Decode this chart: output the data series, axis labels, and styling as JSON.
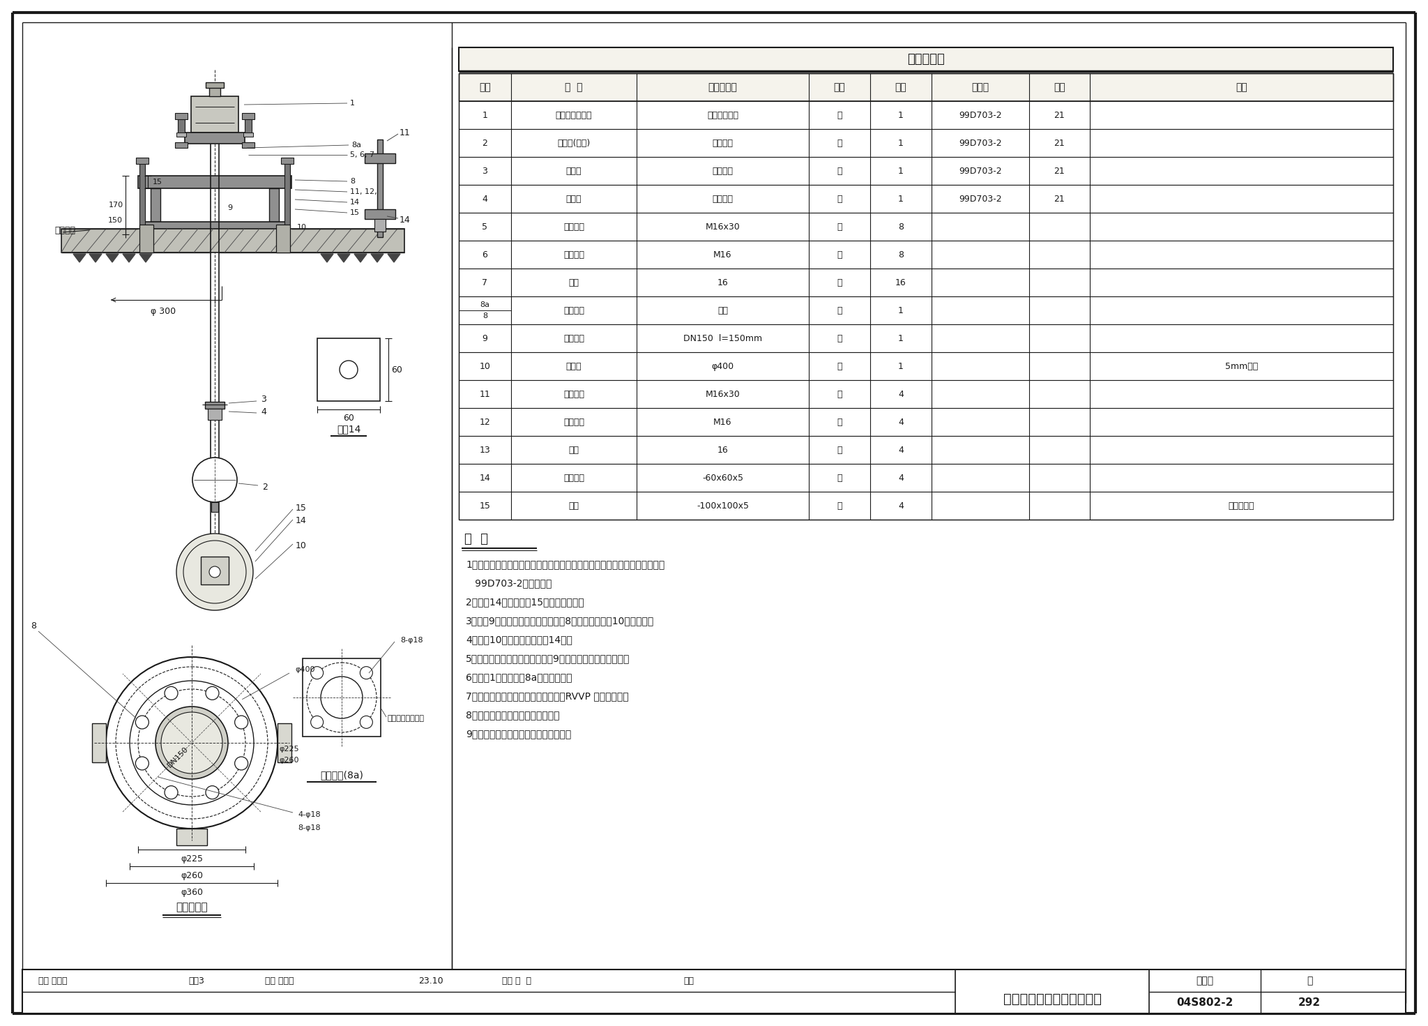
{
  "bg": "#f2f0e8",
  "table_title": "设备材料表",
  "table_headers": [
    "序号",
    "名  称",
    "型号及规格",
    "单位",
    "数量",
    "标准图",
    "页次",
    "附注"
  ],
  "table_rows": [
    [
      "1",
      "浮筒球式液位计",
      "工程设计确定",
      "套",
      "1",
      "99D703-2",
      "21",
      ""
    ],
    [
      "2",
      "传感器(浮球)",
      "仪表配套",
      "套",
      "1",
      "99D703-2",
      "21",
      ""
    ],
    [
      "3",
      "上插圈",
      "仪表配套",
      "套",
      "1",
      "99D703-2",
      "21",
      ""
    ],
    [
      "4",
      "浮球杆",
      "仪表配套",
      "套",
      "1",
      "99D703-2",
      "21",
      ""
    ],
    [
      "5",
      "六角螺栓",
      "M16x30",
      "个",
      "8",
      "",
      "",
      ""
    ],
    [
      "6",
      "六角螺母",
      "M16",
      "个",
      "8",
      "",
      "",
      ""
    ],
    [
      "7",
      "垫圈",
      "16",
      "个",
      "16",
      "",
      "",
      ""
    ],
    [
      "8a/8",
      "安装法兰",
      "见图",
      "对",
      "1",
      "",
      "",
      ""
    ],
    [
      "9",
      "镀锌钢管",
      "DN150  l=150mm",
      "根",
      "1",
      "",
      "",
      ""
    ],
    [
      "10",
      "支承板",
      "φ400",
      "块",
      "1",
      "",
      "",
      "5mm钢板"
    ],
    [
      "11",
      "双头螺栓",
      "M16x30",
      "个",
      "4",
      "",
      "",
      ""
    ],
    [
      "12",
      "六角螺母",
      "M16",
      "个",
      "4",
      "",
      "",
      ""
    ],
    [
      "13",
      "垫圈",
      "16",
      "个",
      "4",
      "",
      "",
      ""
    ],
    [
      "14",
      "安装配件",
      "-60x60x5",
      "件",
      "4",
      "",
      "",
      ""
    ],
    [
      "15",
      "埋件",
      "-100x100x5",
      "块",
      "4",
      "",
      "",
      "土建已预埋"
    ]
  ],
  "notes_title": "说  明",
  "notes": [
    "1、浮筒球式液位计在水塔内人井平台上用法兰安装时见本图，并与标准图集",
    "   99D703-2配合使用。",
    "2、序号14焊接在序号15土建预埋件上。",
    "3、序号9镀锌钢管两头分别焊在序号8安装法兰和序号10支承板上。",
    "4、序号10支承板安装于序号14上。",
    "5、控制水位标高各元件穿过序号9镀锌钢管，自然沉入水中。",
    "6、序号1安装于序号8a安装法兰上。",
    "7、从控制地点到液位计信号线，采用RVVP 型屏蔽电缆。",
    "8、必须保证液位计安装的垂直度。",
    "9、液位计靠近爬梯侧安装，便于维修。"
  ],
  "tb_title": "浮筒球式液位计法兰安装图",
  "tb_review": "审核 易曜光",
  "tb_design": "沈磊3",
  "tb_check": "校对 王道枚",
  "tb_date": "23.10",
  "tb_draw": "设计 陈  缉",
  "tb_sign": "伍钧",
  "tb_atlas": "图集号",
  "tb_atlas_no": "04S802-2",
  "tb_page_lbl": "页",
  "tb_page_no": "292"
}
